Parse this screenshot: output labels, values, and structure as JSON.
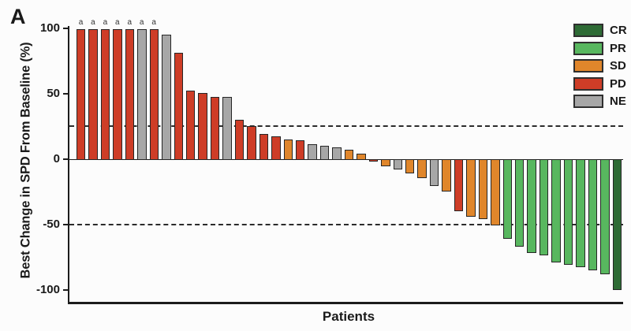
{
  "panel_label": "A",
  "y_axis": {
    "label": "Best Change in SPD From Baseline (%)",
    "ticks": [
      100,
      50,
      0,
      -50,
      -100
    ],
    "range": [
      -100,
      100
    ]
  },
  "x_axis": {
    "label": "Patients"
  },
  "footnote_marker": "a",
  "legend": [
    {
      "code": "CR",
      "color": "#2e6b35"
    },
    {
      "code": "PR",
      "color": "#58b75f"
    },
    {
      "code": "SD",
      "color": "#e0862b"
    },
    {
      "code": "PD",
      "color": "#ce3d27"
    },
    {
      "code": "NE",
      "color": "#a7a7a7"
    }
  ],
  "chart_data": {
    "type": "bar",
    "subtype": "waterfall",
    "title": "",
    "xlabel": "Patients",
    "ylabel": "Best Change in SPD From Baseline (%)",
    "ylim": [
      -100,
      100
    ],
    "grid": false,
    "reference_lines": [
      25,
      -50
    ],
    "legend_position": "top-right",
    "colors": {
      "CR": "#2e6b35",
      "PR": "#58b75f",
      "SD": "#e0862b",
      "PD": "#ce3d27",
      "NE": "#a7a7a7",
      "bar_border": "#262626"
    },
    "bars": [
      {
        "patient": 1,
        "value": 100,
        "response": "PD",
        "note": "a"
      },
      {
        "patient": 2,
        "value": 100,
        "response": "PD",
        "note": "a"
      },
      {
        "patient": 3,
        "value": 100,
        "response": "PD",
        "note": "a"
      },
      {
        "patient": 4,
        "value": 100,
        "response": "PD",
        "note": "a"
      },
      {
        "patient": 5,
        "value": 100,
        "response": "PD",
        "note": "a"
      },
      {
        "patient": 6,
        "value": 100,
        "response": "NE",
        "note": "a"
      },
      {
        "patient": 7,
        "value": 100,
        "response": "PD",
        "note": "a"
      },
      {
        "patient": 8,
        "value": 96,
        "response": "NE",
        "note": ""
      },
      {
        "patient": 9,
        "value": 82,
        "response": "PD",
        "note": ""
      },
      {
        "patient": 10,
        "value": 53,
        "response": "PD",
        "note": ""
      },
      {
        "patient": 11,
        "value": 51,
        "response": "PD",
        "note": ""
      },
      {
        "patient": 12,
        "value": 48,
        "response": "PD",
        "note": ""
      },
      {
        "patient": 13,
        "value": 48,
        "response": "NE",
        "note": ""
      },
      {
        "patient": 14,
        "value": 31,
        "response": "PD",
        "note": ""
      },
      {
        "patient": 15,
        "value": 26,
        "response": "PD",
        "note": ""
      },
      {
        "patient": 16,
        "value": 20,
        "response": "PD",
        "note": ""
      },
      {
        "patient": 17,
        "value": 18,
        "response": "PD",
        "note": ""
      },
      {
        "patient": 18,
        "value": 16,
        "response": "SD",
        "note": ""
      },
      {
        "patient": 19,
        "value": 15,
        "response": "PD",
        "note": ""
      },
      {
        "patient": 20,
        "value": 12,
        "response": "NE",
        "note": ""
      },
      {
        "patient": 21,
        "value": 11,
        "response": "NE",
        "note": ""
      },
      {
        "patient": 22,
        "value": 10,
        "response": "NE",
        "note": ""
      },
      {
        "patient": 23,
        "value": 8,
        "response": "SD",
        "note": ""
      },
      {
        "patient": 24,
        "value": 5,
        "response": "SD",
        "note": ""
      },
      {
        "patient": 25,
        "value": -2,
        "response": "PD",
        "note": ""
      },
      {
        "patient": 26,
        "value": -6,
        "response": "SD",
        "note": ""
      },
      {
        "patient": 27,
        "value": -8,
        "response": "NE",
        "note": ""
      },
      {
        "patient": 28,
        "value": -11,
        "response": "SD",
        "note": ""
      },
      {
        "patient": 29,
        "value": -15,
        "response": "SD",
        "note": ""
      },
      {
        "patient": 30,
        "value": -21,
        "response": "NE",
        "note": ""
      },
      {
        "patient": 31,
        "value": -25,
        "response": "SD",
        "note": ""
      },
      {
        "patient": 32,
        "value": -40,
        "response": "PD",
        "note": ""
      },
      {
        "patient": 33,
        "value": -44,
        "response": "SD",
        "note": ""
      },
      {
        "patient": 34,
        "value": -46,
        "response": "SD",
        "note": ""
      },
      {
        "patient": 35,
        "value": -51,
        "response": "SD",
        "note": ""
      },
      {
        "patient": 36,
        "value": -61,
        "response": "PR",
        "note": ""
      },
      {
        "patient": 37,
        "value": -67,
        "response": "PR",
        "note": ""
      },
      {
        "patient": 38,
        "value": -72,
        "response": "PR",
        "note": ""
      },
      {
        "patient": 39,
        "value": -74,
        "response": "PR",
        "note": ""
      },
      {
        "patient": 40,
        "value": -79,
        "response": "PR",
        "note": ""
      },
      {
        "patient": 41,
        "value": -81,
        "response": "PR",
        "note": ""
      },
      {
        "patient": 42,
        "value": -83,
        "response": "PR",
        "note": ""
      },
      {
        "patient": 43,
        "value": -85,
        "response": "PR",
        "note": ""
      },
      {
        "patient": 44,
        "value": -88,
        "response": "PR",
        "note": ""
      },
      {
        "patient": 45,
        "value": -100,
        "response": "CR",
        "note": ""
      }
    ]
  }
}
